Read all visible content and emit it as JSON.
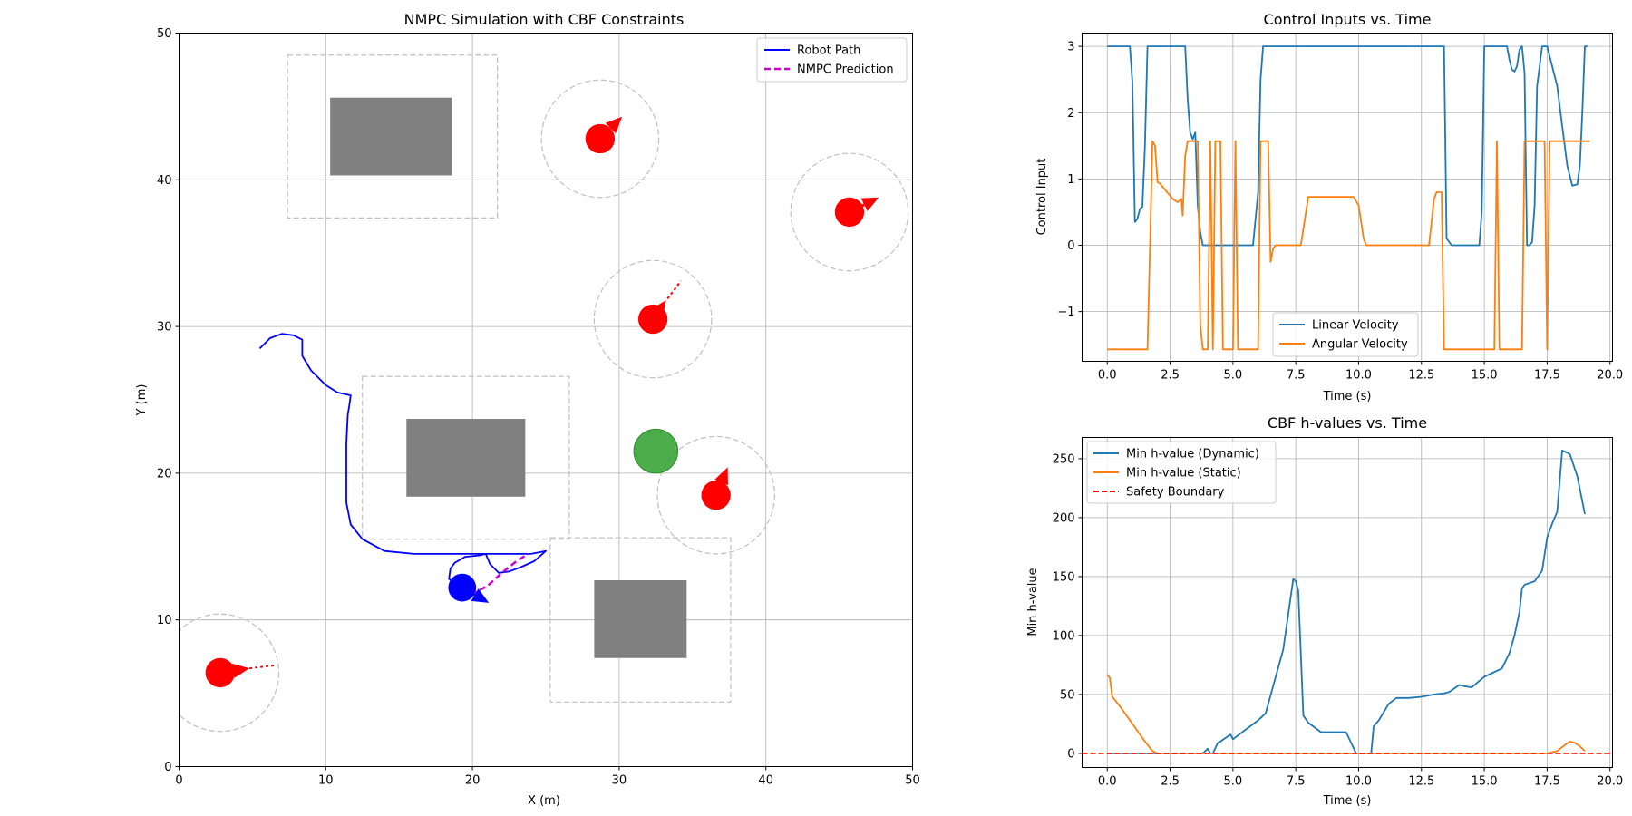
{
  "colors": {
    "robot_path": "#0000ff",
    "nmpc_prediction": "#cc00cc",
    "dynamic_obstacle": "#ff0000",
    "static_obstacle": "#808080",
    "goal": "#2ca02c",
    "safety_zone": "#c0c0c0",
    "linear_velocity": "#1f77b4",
    "angular_velocity": "#ff7f0e",
    "safety_boundary": "#ff0000"
  },
  "chart_data": [
    {
      "type": "scatter",
      "title": "NMPC Simulation with CBF Constraints",
      "xlabel": "X (m)",
      "ylabel": "Y (m)",
      "xlim": [
        0,
        50
      ],
      "ylim": [
        0,
        50
      ],
      "xticks": [
        "0",
        "10",
        "20",
        "30",
        "40",
        "50"
      ],
      "yticks": [
        "0",
        "10",
        "20",
        "30",
        "40",
        "50"
      ],
      "grid": true,
      "legend_position": "top-right",
      "legend": [
        "Robot Path",
        "NMPC Prediction"
      ],
      "robot_path": [
        [
          5.5,
          28.5
        ],
        [
          6.2,
          29.2
        ],
        [
          7,
          29.5
        ],
        [
          7.8,
          29.4
        ],
        [
          8.4,
          29.1
        ],
        [
          8.4,
          28
        ],
        [
          9,
          27
        ],
        [
          10,
          26
        ],
        [
          10.8,
          25.5
        ],
        [
          11.7,
          25.3
        ],
        [
          11.6,
          24.6
        ],
        [
          11.5,
          24
        ],
        [
          11.4,
          22
        ],
        [
          11.4,
          18
        ],
        [
          11.7,
          16.5
        ],
        [
          12.5,
          15.5
        ],
        [
          14,
          14.7
        ],
        [
          16,
          14.5
        ],
        [
          20,
          14.5
        ],
        [
          22,
          14.5
        ],
        [
          24,
          14.5
        ],
        [
          25,
          14.7
        ],
        [
          24.2,
          14
        ],
        [
          23.3,
          13.6
        ],
        [
          22.5,
          13.3
        ],
        [
          21.8,
          13.2
        ],
        [
          21.2,
          13.8
        ],
        [
          20.9,
          14.5
        ],
        [
          20.5,
          14.4
        ],
        [
          19.5,
          14.3
        ],
        [
          18.8,
          13.9
        ],
        [
          18.5,
          13.5
        ],
        [
          18.4,
          12.8
        ],
        [
          19,
          12.3
        ],
        [
          19.3,
          12.2
        ]
      ],
      "nmpc_prediction": [
        [
          19.3,
          12.2
        ],
        [
          20,
          11.8
        ],
        [
          21,
          12.3
        ],
        [
          22,
          13.2
        ],
        [
          23,
          14
        ],
        [
          23.8,
          14.5
        ]
      ],
      "robot": {
        "x": 19.3,
        "y": 12.2,
        "r": 0.95,
        "heading": [
          0.7,
          -0.4
        ]
      },
      "goal": {
        "x": 32.5,
        "y": 21.5,
        "r": 1.5
      },
      "static_obstacles": [
        {
          "x": 10.3,
          "y": 40.3,
          "w": 8.3,
          "h": 5.3,
          "zone": [
            7.4,
            37.4,
            14.3,
            11.1
          ]
        },
        {
          "x": 15.5,
          "y": 18.4,
          "w": 8.1,
          "h": 5.3,
          "zone": [
            12.5,
            15.5,
            14.1,
            11.1
          ]
        },
        {
          "x": 28.3,
          "y": 7.4,
          "w": 6.3,
          "h": 5.3,
          "zone": [
            25.3,
            4.4,
            12.3,
            11.2
          ]
        }
      ],
      "dynamic_obstacles": [
        {
          "x": 28.7,
          "y": 42.8,
          "r": 1.0,
          "zone_r": 4.0,
          "dir": [
            1.5,
            1.5
          ],
          "trail": []
        },
        {
          "x": 45.7,
          "y": 37.8,
          "r": 1.0,
          "zone_r": 4.0,
          "dir": [
            2.0,
            1.0
          ],
          "trail": []
        },
        {
          "x": 32.3,
          "y": 30.5,
          "r": 1.0,
          "zone_r": 4.0,
          "dir": [
            0.9,
            1.3
          ],
          "trail": [
            [
              33.3,
              31.9
            ],
            [
              34.2,
              33.1
            ]
          ]
        },
        {
          "x": 36.6,
          "y": 18.5,
          "r": 1.0,
          "zone_r": 4.0,
          "dir": [
            0.8,
            1.9
          ],
          "trail": []
        },
        {
          "x": 2.8,
          "y": 6.4,
          "r": 1.0,
          "zone_r": 4.0,
          "dir": [
            2.0,
            0.3
          ],
          "trail": [
            [
              4.8,
              6.7
            ],
            [
              6.5,
              6.9
            ]
          ]
        }
      ]
    },
    {
      "type": "line",
      "title": "Control Inputs vs. Time",
      "xlabel": "Time (s)",
      "ylabel": "Control Input",
      "xlim": [
        -1,
        20.1
      ],
      "ylim": [
        -1.75,
        3.2
      ],
      "xticks": [
        0,
        2.5,
        5,
        7.5,
        10,
        12.5,
        15,
        17.5,
        20
      ],
      "xtick_labels": [
        "0.0",
        "2.5",
        "5.0",
        "7.5",
        "10.0",
        "12.5",
        "15.0",
        "17.5",
        "20.0"
      ],
      "yticks": [
        -1,
        0,
        1,
        2,
        3
      ],
      "ytick_labels": [
        "−1",
        "0",
        "1",
        "2",
        "3"
      ],
      "grid": true,
      "legend_position": "bottom-center",
      "series": [
        {
          "name": "Linear Velocity",
          "x": [
            0,
            0.9,
            1.0,
            1.1,
            1.2,
            1.3,
            1.4,
            1.5,
            1.6,
            3.1,
            3.2,
            3.3,
            3.4,
            3.5,
            3.6,
            3.7,
            3.8,
            3.9,
            5.8,
            6.0,
            6.1,
            6.2,
            13.4,
            13.5,
            13.7,
            14.8,
            14.9,
            15.0,
            15.9,
            16.0,
            16.1,
            16.2,
            16.3,
            16.4,
            16.5,
            16.6,
            16.7,
            16.8,
            16.9,
            17.0,
            17.1,
            17.3,
            17.5,
            17.9,
            18.1,
            18.3,
            18.5,
            18.7,
            18.8,
            18.9,
            19.0,
            19.1
          ],
          "values": [
            3.0,
            3.0,
            2.45,
            0.35,
            0.4,
            0.55,
            0.58,
            1.5,
            3.0,
            3.0,
            2.2,
            1.7,
            1.6,
            1.7,
            0.6,
            0.2,
            0.0,
            0.0,
            0.0,
            0.8,
            2.5,
            3.0,
            3.0,
            0.1,
            0.0,
            0.0,
            0.5,
            3.0,
            3.0,
            2.8,
            2.65,
            2.62,
            2.7,
            2.95,
            3.0,
            2.6,
            0.0,
            0.0,
            0.05,
            0.6,
            2.4,
            3.0,
            3.0,
            2.4,
            1.8,
            1.2,
            0.9,
            0.92,
            1.2,
            2.0,
            3.0,
            3.0
          ]
        },
        {
          "name": "Angular Velocity",
          "x": [
            0,
            1.6,
            1.7,
            1.8,
            1.9,
            2.0,
            2.1,
            2.6,
            2.8,
            2.95,
            3.0,
            3.1,
            3.2,
            3.3,
            3.6,
            3.7,
            3.8,
            4.0,
            4.1,
            4.2,
            4.3,
            4.4,
            4.5,
            4.6,
            4.7,
            4.8,
            4.9,
            5.0,
            5.1,
            5.2,
            6.0,
            6.1,
            6.4,
            6.5,
            6.6,
            6.7,
            7.2,
            7.4,
            7.5,
            7.7,
            8.0,
            9.5,
            9.8,
            10.0,
            10.2,
            10.3,
            12.5,
            12.8,
            13.0,
            13.1,
            13.3,
            13.4,
            15.4,
            15.5,
            15.6,
            16.5,
            16.6,
            17.4,
            17.5,
            17.6,
            19.2
          ],
          "values": [
            -1.57,
            -1.57,
            0.0,
            1.57,
            1.5,
            0.95,
            0.93,
            0.7,
            0.65,
            0.7,
            0.45,
            1.35,
            1.57,
            1.57,
            1.57,
            -1.2,
            -1.57,
            -1.57,
            1.57,
            -1.57,
            1.57,
            1.57,
            1.57,
            -1.57,
            -1.57,
            -1.57,
            -1.57,
            -1.57,
            1.57,
            -1.57,
            -1.57,
            1.57,
            1.57,
            -0.25,
            -0.05,
            0.0,
            0.0,
            0.0,
            0.0,
            0.0,
            0.73,
            0.73,
            0.73,
            0.6,
            0.1,
            0.0,
            0.0,
            0.0,
            0.7,
            0.8,
            0.8,
            -1.57,
            -1.57,
            1.57,
            -1.57,
            -1.57,
            1.57,
            1.57,
            -1.57,
            1.57,
            1.57
          ]
        }
      ]
    },
    {
      "type": "line",
      "title": "CBF h-values vs. Time",
      "xlabel": "Time (s)",
      "ylabel": "Min h-value",
      "xlim": [
        -1,
        20.1
      ],
      "ylim": [
        -12,
        268
      ],
      "xticks": [
        0,
        2.5,
        5,
        7.5,
        10,
        12.5,
        15,
        17.5,
        20
      ],
      "xtick_labels": [
        "0.0",
        "2.5",
        "5.0",
        "7.5",
        "10.0",
        "12.5",
        "15.0",
        "17.5",
        "20.0"
      ],
      "yticks": [
        0,
        50,
        100,
        150,
        200,
        250
      ],
      "ytick_labels": [
        "0",
        "50",
        "100",
        "150",
        "200",
        "250"
      ],
      "grid": true,
      "legend_position": "top-left",
      "series": [
        {
          "name": "Min h-value (Dynamic)",
          "x": [
            0,
            1,
            2,
            3,
            3.8,
            4.0,
            4.1,
            4.2,
            4.4,
            4.5,
            4.7,
            4.9,
            5.0,
            5.5,
            6.0,
            6.3,
            7.0,
            7.4,
            7.5,
            7.6,
            7.8,
            8.0,
            8.5,
            9.5,
            9.9,
            10.0,
            10.5,
            10.6,
            10.8,
            11.0,
            11.2,
            11.5,
            12.0,
            12.5,
            13.0,
            13.4,
            13.6,
            14.0,
            14.2,
            14.5,
            15.0,
            15.3,
            15.7,
            16.0,
            16.2,
            16.4,
            16.5,
            16.6,
            17.0,
            17.3,
            17.5,
            17.7,
            17.9,
            18.1,
            18.4,
            18.7,
            19.0
          ],
          "values": [
            0,
            0,
            0,
            0,
            0,
            4,
            0,
            0,
            9,
            10,
            13,
            16,
            12,
            20,
            28,
            34,
            88,
            148,
            146,
            138,
            32,
            26,
            18,
            18,
            0,
            0,
            0,
            23,
            28,
            35,
            42,
            47,
            47,
            48,
            50,
            51,
            52,
            58,
            57,
            56,
            65,
            68,
            72,
            85,
            100,
            120,
            140,
            143,
            146,
            155,
            183,
            195,
            205,
            257,
            254,
            235,
            203
          ]
        },
        {
          "name": "Min h-value (Static)",
          "x": [
            0,
            0.1,
            0.2,
            0.5,
            1.0,
            1.5,
            1.8,
            2.0,
            3.0,
            17.5,
            17.9,
            18.2,
            18.4,
            18.6,
            18.8,
            19.0
          ],
          "values": [
            67,
            64,
            48,
            40,
            25,
            10,
            2,
            0,
            0,
            0,
            2,
            7,
            10,
            9,
            6,
            2
          ]
        },
        {
          "name": "Safety Boundary",
          "x": [
            -1,
            20.1
          ],
          "values": [
            0,
            0
          ]
        }
      ]
    }
  ]
}
